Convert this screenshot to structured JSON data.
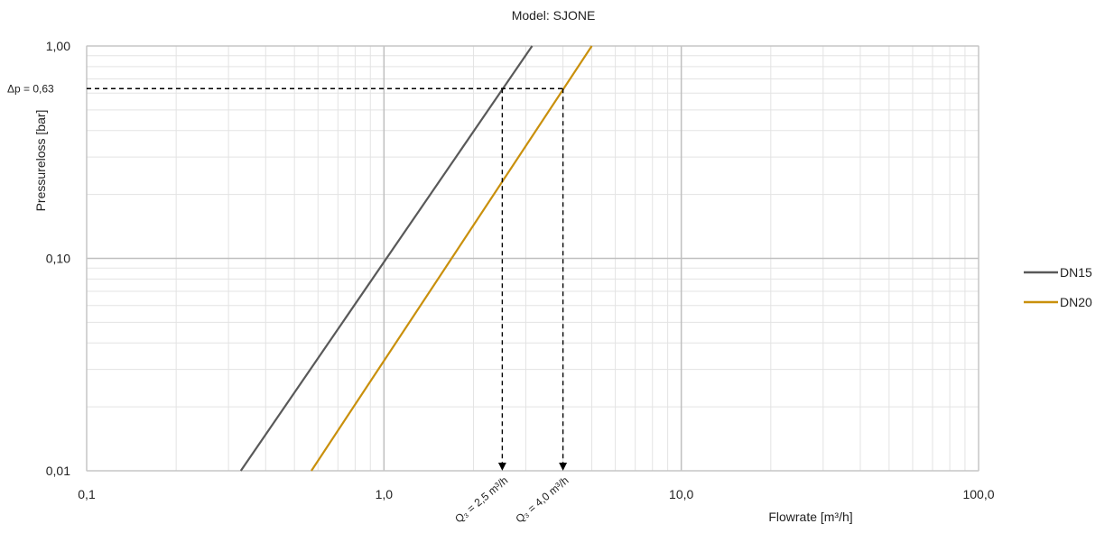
{
  "chart_data": {
    "type": "line",
    "title": "Model: SJONE",
    "xlabel": "Flowrate [m³/h]",
    "ylabel": "Pressureloss [bar]",
    "x_scale": "log",
    "y_scale": "log",
    "xlim": [
      0.1,
      100
    ],
    "ylim": [
      0.01,
      1
    ],
    "x_ticks": [
      {
        "value": 0.1,
        "label": "0,1"
      },
      {
        "value": 1,
        "label": "1,0"
      },
      {
        "value": 10,
        "label": "10,0"
      },
      {
        "value": 100,
        "label": "100,0"
      }
    ],
    "y_ticks": [
      {
        "value": 0.01,
        "label": "0,01"
      },
      {
        "value": 0.1,
        "label": "0,10"
      },
      {
        "value": 1,
        "label": "1,00"
      }
    ],
    "grid": {
      "major": true,
      "minor": true
    },
    "legend_position": "right",
    "series": [
      {
        "name": "DN15",
        "color": "#595959",
        "x": [
          0.33,
          3.15
        ],
        "y": [
          0.01,
          1.0
        ]
      },
      {
        "name": "DN20",
        "color": "#C9900C",
        "x": [
          0.57,
          5.0
        ],
        "y": [
          0.01,
          1.0
        ]
      }
    ],
    "annotations": {
      "dp": {
        "label": "Δp = 0,63",
        "value": 0.63
      },
      "q15": {
        "label": "Q₃ = 2,5 m³/h",
        "value": 2.5
      },
      "q20": {
        "label": "Q₃ = 4,0 m³/h",
        "value": 4.0
      }
    }
  }
}
